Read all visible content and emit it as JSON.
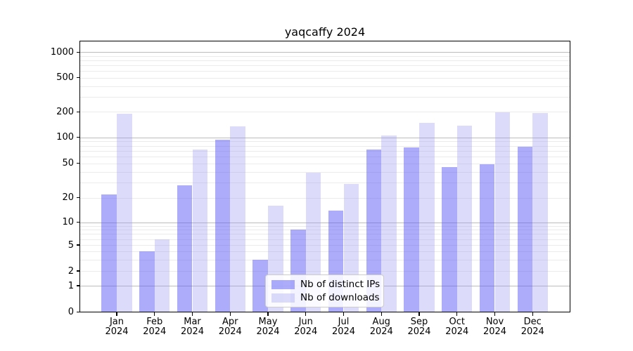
{
  "chart_data": {
    "type": "bar",
    "title": "yaqcaffy 2024",
    "year": "2024",
    "categories": [
      "Jan",
      "Feb",
      "Mar",
      "Apr",
      "May",
      "Jun",
      "Jul",
      "Aug",
      "Sep",
      "Oct",
      "Nov",
      "Dec"
    ],
    "series": [
      {
        "name": "Nb of distinct IPs",
        "color": "#acacfa",
        "values": [
          22,
          4,
          28,
          95,
          3,
          8,
          14,
          73,
          77,
          45,
          49,
          78
        ]
      },
      {
        "name": "Nb of downloads",
        "color": "#dcdcfa",
        "values": [
          190,
          6,
          73,
          134,
          16,
          39,
          29,
          106,
          148,
          138,
          197,
          195
        ]
      }
    ],
    "yticks": [
      "1000",
      "500",
      "200",
      "100",
      "50",
      "20",
      "10",
      "5",
      "2",
      "1",
      "0"
    ],
    "xlabel": "",
    "ylabel": "",
    "yscale": "symlog",
    "ylim": [
      0,
      1400
    ],
    "grid": "on",
    "legend_position": "lower center",
    "gridline_major_color": "#bcbcbc",
    "gridline_minor_color": "#ebebeb"
  }
}
